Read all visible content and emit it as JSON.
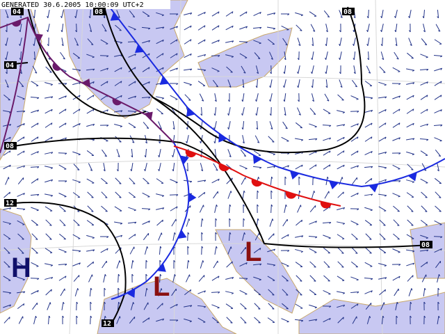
{
  "header": {
    "generated": "GENERATED 30.6.2005 10:00:09 UTC+2"
  },
  "isobar_labels": [
    "04",
    "08",
    "08",
    "04",
    "08",
    "12",
    "08",
    "12"
  ],
  "pressure_centers": [
    "H",
    "L",
    "L"
  ]
}
